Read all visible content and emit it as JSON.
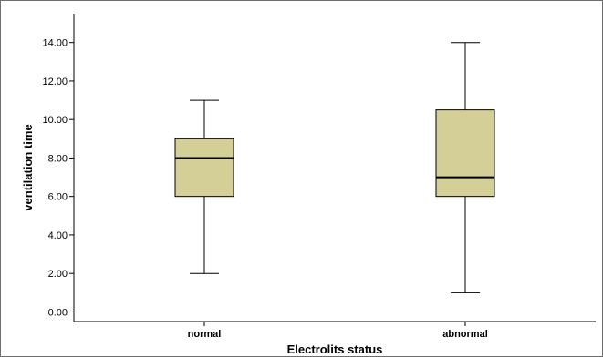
{
  "chart_data": {
    "type": "box",
    "title": "",
    "xlabel": "Electrolits status",
    "ylabel": "ventilation time",
    "ylim": [
      -0.5,
      15.5
    ],
    "yticks": [
      "0.00",
      "2.00",
      "4.00",
      "6.00",
      "8.00",
      "10.00",
      "12.00",
      "14.00"
    ],
    "grid": false,
    "box_color": "#d4cf96",
    "categories": [
      "normal",
      "abnormal"
    ],
    "boxes": [
      {
        "category": "normal",
        "min": 2.0,
        "q1": 6.0,
        "median": 8.0,
        "q3": 9.0,
        "max": 11.0
      },
      {
        "category": "abnormal",
        "min": 1.0,
        "q1": 6.0,
        "median": 7.0,
        "q3": 10.5,
        "max": 14.0
      }
    ]
  }
}
